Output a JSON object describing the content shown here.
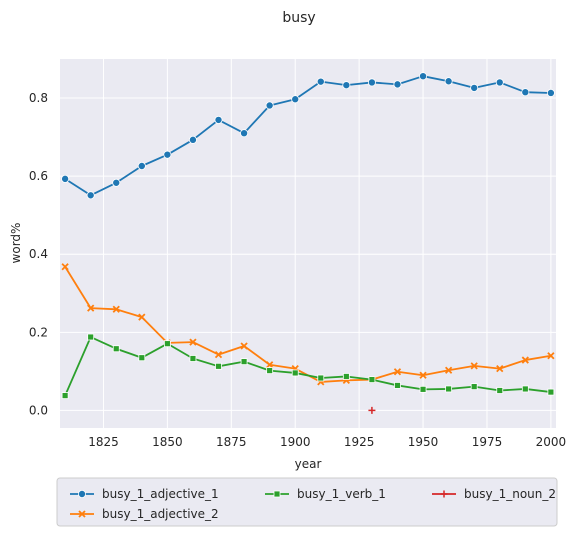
{
  "chart_data": {
    "type": "line",
    "title": "busy",
    "xlabel": "year",
    "ylabel": "word%",
    "xlim": [
      1808,
      2002
    ],
    "ylim": [
      -0.045,
      0.9
    ],
    "xticks": [
      1825,
      1850,
      1875,
      1900,
      1925,
      1950,
      1975,
      2000
    ],
    "yticks": [
      0.0,
      0.2,
      0.4,
      0.6,
      0.8
    ],
    "grid": true,
    "legend_position": "bottom",
    "series": [
      {
        "name": "busy_1_adjective_1",
        "color": "#1f77b4",
        "marker": "circle",
        "x": [
          1810,
          1820,
          1830,
          1840,
          1850,
          1860,
          1870,
          1880,
          1890,
          1900,
          1910,
          1920,
          1930,
          1940,
          1950,
          1960,
          1970,
          1980,
          1990,
          2000
        ],
        "values": [
          0.593,
          0.551,
          0.583,
          0.626,
          0.655,
          0.693,
          0.744,
          0.71,
          0.781,
          0.797,
          0.842,
          0.833,
          0.84,
          0.835,
          0.856,
          0.843,
          0.826,
          0.84,
          0.815,
          0.813
        ]
      },
      {
        "name": "busy_1_adjective_2",
        "color": "#ff7f0e",
        "marker": "x",
        "x": [
          1810,
          1820,
          1830,
          1840,
          1850,
          1860,
          1870,
          1880,
          1890,
          1900,
          1910,
          1920,
          1930,
          1940,
          1950,
          1960,
          1970,
          1980,
          1990,
          2000
        ],
        "values": [
          0.368,
          0.262,
          0.259,
          0.239,
          0.173,
          0.175,
          0.143,
          0.165,
          0.117,
          0.107,
          0.073,
          0.077,
          0.079,
          0.099,
          0.09,
          0.103,
          0.114,
          0.107,
          0.129,
          0.14
        ]
      },
      {
        "name": "busy_1_verb_1",
        "color": "#2ca02c",
        "marker": "square",
        "x": [
          1810,
          1820,
          1830,
          1840,
          1850,
          1860,
          1870,
          1880,
          1890,
          1900,
          1910,
          1920,
          1930,
          1940,
          1950,
          1960,
          1970,
          1980,
          1990,
          2000
        ],
        "values": [
          0.038,
          0.188,
          0.158,
          0.135,
          0.171,
          0.133,
          0.113,
          0.125,
          0.102,
          0.096,
          0.083,
          0.087,
          0.079,
          0.064,
          0.054,
          0.055,
          0.061,
          0.051,
          0.055,
          0.047
        ]
      },
      {
        "name": "busy_1_noun_2",
        "color": "#d62728",
        "marker": "plus",
        "x": [
          1930
        ],
        "values": [
          0.0
        ]
      }
    ]
  }
}
